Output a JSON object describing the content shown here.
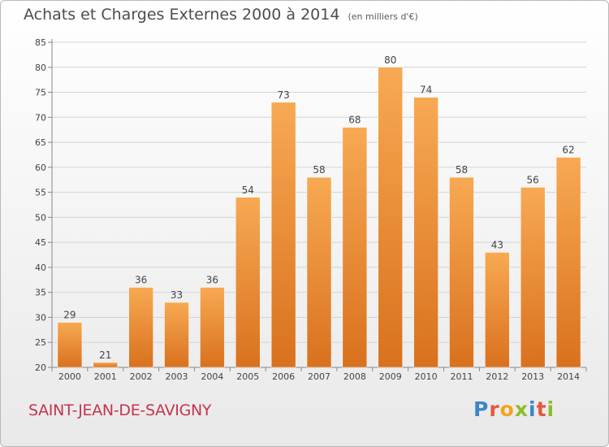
{
  "header": {
    "title": "Achats et Charges Externes 2000 à 2014",
    "unit": "(en milliers d'€)"
  },
  "footer": {
    "town": "SAINT-JEAN-DE-SAVIGNY",
    "brand": "Proxiti"
  },
  "colors": {
    "bar_top": "#f8a953",
    "bar_bottom": "#d9711e",
    "grid": "#d3d3d3",
    "town": "#c8334f"
  },
  "chart_data": {
    "type": "bar",
    "title": "Achats et Charges Externes 2000 à 2014",
    "subtitle": "(en milliers d'€)",
    "categories": [
      "2000",
      "2001",
      "2002",
      "2003",
      "2004",
      "2005",
      "2006",
      "2007",
      "2008",
      "2009",
      "2010",
      "2011",
      "2012",
      "2013",
      "2014"
    ],
    "values": [
      29,
      21,
      36,
      33,
      36,
      54,
      73,
      58,
      68,
      80,
      74,
      58,
      43,
      56,
      62
    ],
    "ylim": [
      20,
      85
    ],
    "yticks": [
      20,
      25,
      30,
      35,
      40,
      45,
      50,
      55,
      60,
      65,
      70,
      75,
      80,
      85
    ],
    "grid": true,
    "data_labels": true
  }
}
